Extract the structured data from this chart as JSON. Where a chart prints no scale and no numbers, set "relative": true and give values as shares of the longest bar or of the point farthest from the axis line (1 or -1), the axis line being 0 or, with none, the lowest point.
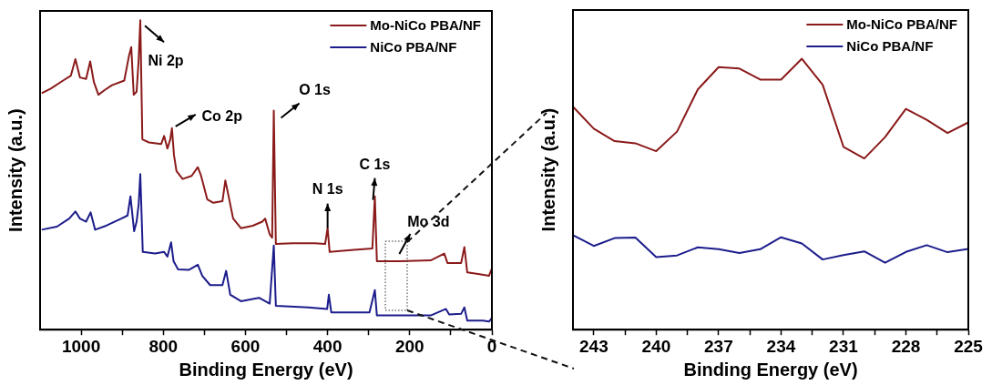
{
  "chart_data": [
    {
      "type": "line",
      "xlabel": "Binding Energy (eV)",
      "ylabel": "Intensity (a.u.)",
      "relative": true,
      "xlim": [
        1100,
        0
      ],
      "xticks": [
        1000,
        {
          "value": 900,
          "label": null
        },
        800,
        {
          "value": 700,
          "label": null
        },
        600,
        {
          "value": 500,
          "label": null
        },
        400,
        {
          "value": 300,
          "label": null
        },
        200,
        {
          "value": 100,
          "label": null
        },
        0
      ],
      "legend": "top right",
      "marker": "none",
      "line_style": "solid",
      "series": [
        {
          "name": "Mo-NiCo PBA/NF",
          "color": "#8b1a1a",
          "x": [
            1096,
            1074,
            1044,
            1025,
            1014,
            1003,
            988,
            978,
            969,
            958,
            943,
            925,
            895,
            884,
            878,
            872,
            865,
            860,
            856,
            851,
            835,
            805,
            798,
            790,
            783,
            779,
            774,
            768,
            753,
            731,
            716,
            708,
            693,
            678,
            656,
            649,
            641,
            630,
            611,
            582,
            559,
            552,
            541,
            535,
            531,
            526,
            485,
            432,
            406,
            400,
            395,
            336,
            291,
            285,
            280,
            224,
            149,
            116,
            108,
            75,
            67,
            60,
            30,
            7,
            1
          ],
          "values": [
            0.764,
            0.779,
            0.805,
            0.821,
            0.874,
            0.815,
            0.81,
            0.867,
            0.8,
            0.759,
            0.774,
            0.79,
            0.805,
            0.882,
            0.913,
            0.759,
            0.769,
            0.872,
            1,
            0.615,
            0.605,
            0.6,
            0.626,
            0.585,
            0.615,
            0.651,
            0.564,
            0.513,
            0.487,
            0.497,
            0.525,
            0.497,
            0.421,
            0.41,
            0.415,
            0.482,
            0.431,
            0.359,
            0.328,
            0.336,
            0.349,
            0.359,
            0.308,
            0.297,
            0.708,
            0.277,
            0.279,
            0.279,
            0.277,
            0.328,
            0.251,
            0.258,
            0.262,
            0.431,
            0.221,
            0.221,
            0.224,
            0.246,
            0.215,
            0.215,
            0.267,
            0.185,
            0.179,
            0.174,
            0.195
          ]
        },
        {
          "name": "NiCo PBA/NF",
          "color": "#1c1c8c",
          "x": [
            1096,
            1059,
            1029,
            1014,
            1003,
            988,
            977,
            966,
            939,
            902,
            887,
            880,
            871,
            865,
            860,
            856,
            850,
            820,
            798,
            790,
            781,
            775,
            764,
            738,
            716,
            705,
            686,
            656,
            647,
            637,
            611,
            567,
            552,
            541,
            531,
            526,
            447,
            401,
            397,
            391,
            298,
            285,
            280,
            149,
            112,
            104,
            75,
            67,
            60,
            22,
            7,
            0
          ],
          "values": [
            0.323,
            0.333,
            0.359,
            0.382,
            0.359,
            0.349,
            0.379,
            0.323,
            0.336,
            0.359,
            0.369,
            0.431,
            0.318,
            0.349,
            0.405,
            0.503,
            0.251,
            0.246,
            0.251,
            0.236,
            0.282,
            0.221,
            0.195,
            0.193,
            0.21,
            0.174,
            0.144,
            0.144,
            0.19,
            0.113,
            0.092,
            0.103,
            0.092,
            0.084,
            0.272,
            0.077,
            0.072,
            0.067,
            0.113,
            0.056,
            0.056,
            0.128,
            0.046,
            0.046,
            0.067,
            0.049,
            0.051,
            0.072,
            0.029,
            0.029,
            0.026,
            0.038
          ]
        }
      ],
      "annotations": [
        {
          "text": "Ni 2p",
          "x": 856,
          "y": 1
        },
        {
          "text": "Co 2p",
          "x": 779,
          "y": 0.651
        },
        {
          "text": "O 1s",
          "x": 531,
          "y": 0.708
        },
        {
          "text": "N 1s",
          "x": 400,
          "y": 0.328
        },
        {
          "text": "C 1s",
          "x": 285,
          "y": 0.431
        },
        {
          "text": "Mo 3d",
          "x": 232,
          "y": 0.221
        }
      ]
    },
    {
      "type": "line",
      "xlabel": "Binding Energy (eV)",
      "ylabel": "Intensity (a.u.)",
      "relative": true,
      "xlim": [
        244,
        225
      ],
      "xticks": [
        243,
        {
          "value": 241.5,
          "label": null
        },
        240,
        {
          "value": 238.5,
          "label": null
        },
        237,
        {
          "value": 235.5,
          "label": null
        },
        234,
        {
          "value": 232.5,
          "label": null
        },
        231,
        {
          "value": 229.5,
          "label": null
        },
        228,
        {
          "value": 226.5,
          "label": null
        },
        225
      ],
      "legend": "top right",
      "marker": "none",
      "line_style": "solid",
      "x": [
        244,
        243,
        242,
        241,
        240,
        239,
        238,
        237,
        236,
        235,
        234,
        233,
        232,
        231,
        230,
        229,
        228,
        227,
        226,
        225
      ],
      "series": [
        {
          "name": "Mo-NiCo PBA/NF",
          "color": "#8b1a1a",
          "values": [
            0.823,
            0.742,
            0.696,
            0.688,
            0.659,
            0.731,
            0.887,
            0.969,
            0.964,
            0.923,
            0.923,
            1,
            0.904,
            0.675,
            0.632,
            0.711,
            0.815,
            0.775,
            0.726,
            0.765
          ]
        },
        {
          "name": "NiCo PBA/NF",
          "color": "#1c1c8c",
          "values": [
            0.349,
            0.309,
            0.338,
            0.34,
            0.268,
            0.274,
            0.304,
            0.297,
            0.283,
            0.297,
            0.341,
            0.318,
            0.259,
            0.275,
            0.289,
            0.247,
            0.287,
            0.312,
            0.286,
            0.298
          ]
        }
      ]
    }
  ]
}
